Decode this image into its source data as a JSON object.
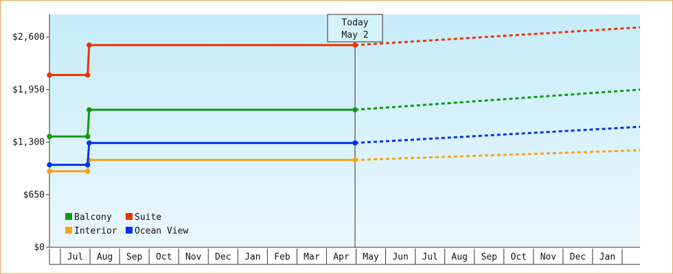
{
  "chart_data": {
    "type": "line",
    "title": "",
    "xlabel": "",
    "ylabel": "",
    "ylim": [
      0,
      2880
    ],
    "y_ticks": [
      0,
      650,
      1300,
      1950,
      2600
    ],
    "y_tick_labels": [
      "$0",
      "$650",
      "$1,300",
      "$1,950",
      "$2,600"
    ],
    "months": [
      "Jul",
      "Aug",
      "Sep",
      "Oct",
      "Nov",
      "Dec",
      "Jan",
      "Feb",
      "Mar",
      "Apr",
      "May",
      "Jun",
      "Jul",
      "Aug",
      "Sep",
      "Oct",
      "Nov",
      "Dec",
      "Jan"
    ],
    "today_index": 10,
    "today_label": [
      "Today",
      "May 2"
    ],
    "grid": false,
    "legend_position": "bottom-left",
    "series": [
      {
        "name": "Balcony",
        "color": "#119911",
        "history": [
          [
            0,
            1370
          ],
          [
            1.25,
            1370
          ],
          [
            1.3,
            1700
          ],
          [
            10,
            1700
          ]
        ],
        "forecast": [
          [
            10,
            1700
          ],
          [
            19.9,
            1950
          ]
        ]
      },
      {
        "name": "Suite",
        "color": "#ee3300",
        "history": [
          [
            0,
            2130
          ],
          [
            1.25,
            2130
          ],
          [
            1.3,
            2500
          ],
          [
            10,
            2500
          ]
        ],
        "forecast": [
          [
            10,
            2500
          ],
          [
            19.9,
            2720
          ]
        ]
      },
      {
        "name": "Interior",
        "color": "#f5a31a",
        "history": [
          [
            0,
            940
          ],
          [
            1.25,
            940
          ],
          [
            1.3,
            1080
          ],
          [
            10,
            1080
          ]
        ],
        "forecast": [
          [
            10,
            1080
          ],
          [
            19.9,
            1200
          ]
        ]
      },
      {
        "name": "Ocean View",
        "color": "#0033ee",
        "history": [
          [
            0,
            1020
          ],
          [
            1.25,
            1020
          ],
          [
            1.3,
            1290
          ],
          [
            10,
            1290
          ]
        ],
        "forecast": [
          [
            10,
            1290
          ],
          [
            19.9,
            1490
          ]
        ]
      }
    ]
  }
}
